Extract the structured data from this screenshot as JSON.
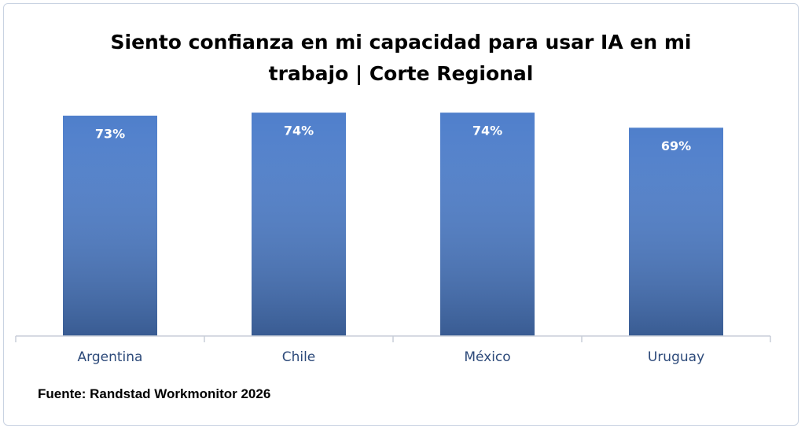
{
  "chart_data": {
    "type": "bar",
    "title": "Siento confianza en mi capacidad para usar IA en mi trabajo | Corte Regional",
    "categories": [
      "Argentina",
      "Chile",
      "México",
      "Uruguay"
    ],
    "values": [
      73,
      74,
      74,
      69
    ],
    "value_labels": [
      "73%",
      "74%",
      "74%",
      "69%"
    ],
    "color": "#4f7fcb",
    "source": "Fuente: Randstad Workmonitor 2026"
  }
}
